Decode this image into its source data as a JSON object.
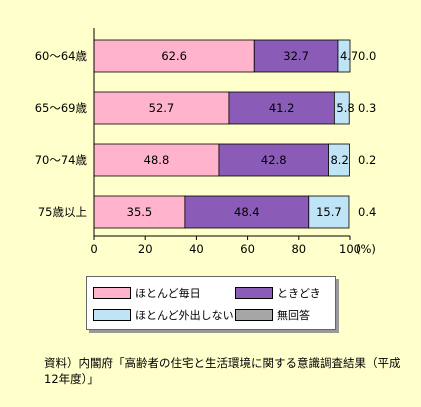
{
  "chart_data": {
    "type": "bar",
    "orientation": "horizontal",
    "stacked": true,
    "categories": [
      "60～64歳",
      "65～69歳",
      "70～74歳",
      "75歳以上"
    ],
    "series": [
      {
        "name": "ほとんど毎日",
        "values": [
          62.6,
          52.7,
          48.8,
          35.5
        ],
        "color": "#ffb3cc"
      },
      {
        "name": "ときどき",
        "values": [
          32.7,
          41.2,
          42.8,
          48.4
        ],
        "color": "#8a5cb8"
      },
      {
        "name": "ほとんど外出しない",
        "values": [
          4.7,
          5.8,
          8.2,
          15.7
        ],
        "color": "#bfe4f5"
      },
      {
        "name": "無回答",
        "values": [
          0.0,
          0.3,
          0.2,
          0.4
        ],
        "color": "#a6a6a6"
      }
    ],
    "label_text": [
      [
        "62.6",
        "32.7",
        "4.7",
        "0.0"
      ],
      [
        "52.7",
        "41.2",
        "5.8",
        "0.3"
      ],
      [
        "48.8",
        "42.8",
        "8.2",
        "0.2"
      ],
      [
        "35.5",
        "48.4",
        "15.7",
        "0.4"
      ]
    ],
    "xticks": [
      "0",
      "20",
      "40",
      "60",
      "80",
      "100"
    ],
    "xunit": "(%)",
    "xlim": [
      0,
      100
    ],
    "legend_position": "bottom"
  },
  "source": "資料）内閣府「高齢者の住宅と生活環境に関する意識調査結果（平成12年度）」"
}
